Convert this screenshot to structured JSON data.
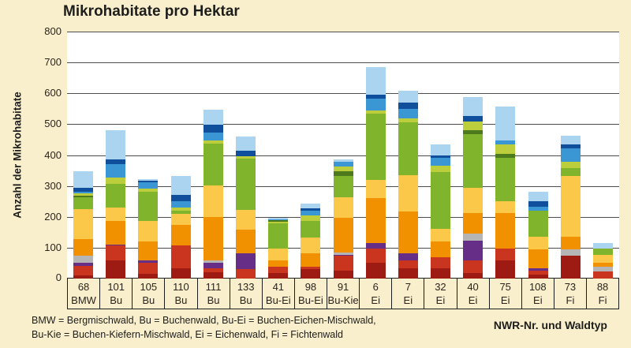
{
  "chart_data": {
    "type": "bar",
    "stacked": true,
    "title": "Mikrohabitate pro Hektar",
    "ylabel": "Anzahl der Mikrohabitate",
    "xlabel": "NWR-Nr. und Waldtyp",
    "ylim": [
      0,
      800
    ],
    "yticks": [
      0,
      100,
      200,
      300,
      400,
      500,
      600,
      700,
      800
    ],
    "grid": true,
    "legend_visible": false,
    "colors": {
      "darkred": "#9d1b13",
      "red": "#c9351f",
      "purple": "#662e87",
      "gray": "#b5b5b5",
      "orange": "#f29100",
      "yellow": "#fcc849",
      "green": "#7fb42c",
      "olive": "#4c7a1d",
      "lime": "#bcce3c",
      "skyblue": "#3a97d4",
      "darkblue": "#0f4f9c",
      "lightblue": "#aad4f0"
    },
    "bars": [
      {
        "nwr": "68",
        "waldtyp": "BMW",
        "total": 347,
        "segments": [
          [
            "darkred",
            10
          ],
          [
            "red",
            32
          ],
          [
            "purple",
            10
          ],
          [
            "gray",
            21
          ],
          [
            "orange",
            55
          ],
          [
            "yellow",
            98
          ],
          [
            "green",
            38
          ],
          [
            "olive",
            5
          ],
          [
            "lime",
            7
          ],
          [
            "skyblue",
            5
          ],
          [
            "darkblue",
            13
          ],
          [
            "lightblue",
            53
          ]
        ]
      },
      {
        "nwr": "101",
        "waldtyp": "Bu",
        "total": 481,
        "segments": [
          [
            "darkred",
            60
          ],
          [
            "red",
            47
          ],
          [
            "purple",
            4
          ],
          [
            "orange",
            76
          ],
          [
            "yellow",
            43
          ],
          [
            "green",
            77
          ],
          [
            "lime",
            21
          ],
          [
            "skyblue",
            42
          ],
          [
            "darkblue",
            17
          ],
          [
            "lightblue",
            94
          ]
        ]
      },
      {
        "nwr": "105",
        "waldtyp": "Bu",
        "total": 323,
        "segments": [
          [
            "darkred",
            15
          ],
          [
            "red",
            35
          ],
          [
            "purple",
            8
          ],
          [
            "orange",
            63
          ],
          [
            "yellow",
            66
          ],
          [
            "green",
            94
          ],
          [
            "lime",
            10
          ],
          [
            "skyblue",
            20
          ],
          [
            "darkblue",
            7
          ],
          [
            "lightblue",
            5
          ]
        ]
      },
      {
        "nwr": "110",
        "waldtyp": "Bu",
        "total": 332,
        "segments": [
          [
            "darkred",
            34
          ],
          [
            "red",
            73
          ],
          [
            "orange",
            68
          ],
          [
            "yellow",
            34
          ],
          [
            "green",
            11
          ],
          [
            "lime",
            10
          ],
          [
            "skyblue",
            21
          ],
          [
            "darkblue",
            21
          ],
          [
            "lightblue",
            60
          ]
        ]
      },
      {
        "nwr": "111",
        "waldtyp": "Bu",
        "total": 547,
        "segments": [
          [
            "darkred",
            21
          ],
          [
            "red",
            13
          ],
          [
            "purple",
            17
          ],
          [
            "gray",
            9
          ],
          [
            "orange",
            140
          ],
          [
            "yellow",
            102
          ],
          [
            "green",
            136
          ],
          [
            "lime",
            9
          ],
          [
            "skyblue",
            25
          ],
          [
            "darkblue",
            26
          ],
          [
            "lightblue",
            49
          ]
        ]
      },
      {
        "nwr": "133",
        "waldtyp": "Bu",
        "total": 459,
        "segments": [
          [
            "red",
            30
          ],
          [
            "purple",
            51
          ],
          [
            "orange",
            77
          ],
          [
            "yellow",
            64
          ],
          [
            "green",
            166
          ],
          [
            "lime",
            9
          ],
          [
            "darkblue",
            17
          ],
          [
            "lightblue",
            45
          ]
        ]
      },
      {
        "nwr": "41",
        "waldtyp": "Bu-Ei",
        "total": 196,
        "segments": [
          [
            "darkred",
            19
          ],
          [
            "red",
            19
          ],
          [
            "orange",
            22
          ],
          [
            "yellow",
            36
          ],
          [
            "green",
            82
          ],
          [
            "lime",
            6
          ],
          [
            "olive",
            5
          ],
          [
            "skyblue",
            4
          ],
          [
            "lightblue",
            3
          ]
        ]
      },
      {
        "nwr": "98",
        "waldtyp": "Bu-Ei",
        "total": 244,
        "segments": [
          [
            "darkred",
            30
          ],
          [
            "red",
            8
          ],
          [
            "orange",
            43
          ],
          [
            "yellow",
            51
          ],
          [
            "green",
            55
          ],
          [
            "lime",
            17
          ],
          [
            "skyblue",
            17
          ],
          [
            "darkblue",
            6
          ],
          [
            "lightblue",
            17
          ]
        ]
      },
      {
        "nwr": "91",
        "waldtyp": "Bu-Kie",
        "total": 387,
        "segments": [
          [
            "darkred",
            26
          ],
          [
            "red",
            47
          ],
          [
            "purple",
            3
          ],
          [
            "gray",
            9
          ],
          [
            "orange",
            111
          ],
          [
            "yellow",
            68
          ],
          [
            "green",
            68
          ],
          [
            "olive",
            15
          ],
          [
            "lime",
            15
          ],
          [
            "skyblue",
            17
          ],
          [
            "lightblue",
            8
          ]
        ]
      },
      {
        "nwr": "6",
        "waldtyp": "Ei",
        "total": 685,
        "segments": [
          [
            "darkred",
            52
          ],
          [
            "red",
            46
          ],
          [
            "purple",
            17
          ],
          [
            "orange",
            145
          ],
          [
            "yellow",
            59
          ],
          [
            "green",
            215
          ],
          [
            "lime",
            10
          ],
          [
            "skyblue",
            38
          ],
          [
            "darkblue",
            13
          ],
          [
            "lightblue",
            90
          ]
        ]
      },
      {
        "nwr": "7",
        "waldtyp": "Ei",
        "total": 608,
        "segments": [
          [
            "darkred",
            34
          ],
          [
            "red",
            26
          ],
          [
            "purple",
            21
          ],
          [
            "orange",
            136
          ],
          [
            "yellow",
            119
          ],
          [
            "green",
            170
          ],
          [
            "lime",
            13
          ],
          [
            "skyblue",
            30
          ],
          [
            "darkblue",
            20
          ],
          [
            "lightblue",
            39
          ]
        ]
      },
      {
        "nwr": "32",
        "waldtyp": "Ei",
        "total": 434,
        "segments": [
          [
            "darkred",
            34
          ],
          [
            "red",
            34
          ],
          [
            "orange",
            51
          ],
          [
            "yellow",
            43
          ],
          [
            "green",
            183
          ],
          [
            "lime",
            21
          ],
          [
            "skyblue",
            26
          ],
          [
            "darkblue",
            8
          ],
          [
            "lightblue",
            34
          ]
        ]
      },
      {
        "nwr": "40",
        "waldtyp": "Ei",
        "total": 587,
        "segments": [
          [
            "darkred",
            17
          ],
          [
            "red",
            43
          ],
          [
            "purple",
            64
          ],
          [
            "gray",
            21
          ],
          [
            "orange",
            68
          ],
          [
            "yellow",
            81
          ],
          [
            "green",
            174
          ],
          [
            "olive",
            13
          ],
          [
            "lime",
            29
          ],
          [
            "darkblue",
            17
          ],
          [
            "lightblue",
            60
          ]
        ]
      },
      {
        "nwr": "75",
        "waldtyp": "Ei",
        "total": 557,
        "segments": [
          [
            "darkred",
            60
          ],
          [
            "red",
            38
          ],
          [
            "orange",
            115
          ],
          [
            "yellow",
            38
          ],
          [
            "green",
            141
          ],
          [
            "olive",
            12
          ],
          [
            "lime",
            30
          ],
          [
            "skyblue",
            13
          ],
          [
            "lightblue",
            110
          ]
        ]
      },
      {
        "nwr": "108",
        "waldtyp": "Ei",
        "total": 281,
        "segments": [
          [
            "darkred",
            13
          ],
          [
            "red",
            13
          ],
          [
            "purple",
            8
          ],
          [
            "orange",
            60
          ],
          [
            "yellow",
            42
          ],
          [
            "green",
            85
          ],
          [
            "skyblue",
            13
          ],
          [
            "darkblue",
            17
          ],
          [
            "lightblue",
            30
          ]
        ]
      },
      {
        "nwr": "73",
        "waldtyp": "Fi",
        "total": 464,
        "segments": [
          [
            "darkred",
            73
          ],
          [
            "gray",
            21
          ],
          [
            "orange",
            42
          ],
          [
            "yellow",
            196
          ],
          [
            "green",
            26
          ],
          [
            "lime",
            21
          ],
          [
            "skyblue",
            42
          ],
          [
            "darkblue",
            13
          ],
          [
            "lightblue",
            30
          ]
        ]
      },
      {
        "nwr": "88",
        "waldtyp": "Fi",
        "total": 115,
        "segments": [
          [
            "red",
            22
          ],
          [
            "gray",
            17
          ],
          [
            "orange",
            12
          ],
          [
            "yellow",
            26
          ],
          [
            "green",
            21
          ],
          [
            "lightblue",
            17
          ]
        ]
      }
    ],
    "footnotes": [
      "BMW = Bergmischwald,  Bu = Buchenwald,  Bu-Ei = Buchen-Eichen-Mischwald,",
      "Bu-Kie = Buchen-Kiefern-Mischwald, Ei = Eichenwald, Fi = Fichtenwald"
    ]
  }
}
